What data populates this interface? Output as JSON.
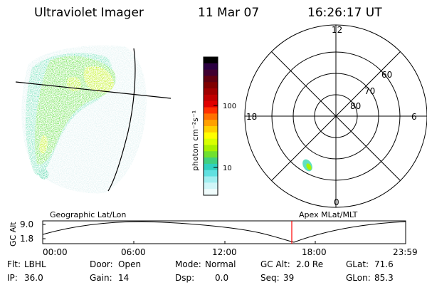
{
  "header": {
    "title": "Ultraviolet Imager",
    "date": "11 Mar 07",
    "time": "16:26:17 UT"
  },
  "colorbar": {
    "unit_label": "photon cm⁻²s⁻¹",
    "tick_labels": [
      "100",
      "10"
    ],
    "colors": [
      "#000000",
      "#2a0040",
      "#400030",
      "#600010",
      "#800000",
      "#a00000",
      "#c00000",
      "#e00000",
      "#ff3000",
      "#ff7000",
      "#ffa000",
      "#ffd000",
      "#ffff00",
      "#d8ff00",
      "#a8f000",
      "#70e030",
      "#40d080",
      "#30d0c0",
      "#60e0e0",
      "#a0eef0",
      "#d0f6f8",
      "#f0fcfc"
    ]
  },
  "polar_plot": {
    "mlt_labels": {
      "top": "12",
      "left": "18",
      "right": "6",
      "bottom": "0"
    },
    "lat_labels": [
      "60",
      "70",
      "80"
    ]
  },
  "timeline": {
    "y_axis_title": "GC Alt",
    "y_ticks": [
      "9.0",
      "1.8"
    ],
    "left_label": "Geographic Lat/Lon",
    "right_label": "Apex MLat/MLT",
    "x_ticks": [
      "00:00",
      "06:00",
      "12:00",
      "18:00",
      "23:59"
    ],
    "marker_time": "16:26",
    "marker_color": "#ff0000"
  },
  "status": {
    "flt_label": "Flt:",
    "flt_value": "LBHL",
    "door_label": "Door:",
    "door_value": "Open",
    "mode_label": "Mode:",
    "mode_value": "Normal",
    "gcalt_label": "GC Alt:",
    "gcalt_value": "2.0 Re",
    "glat_label": "GLat:",
    "glat_value": "71.6",
    "ip_label": "IP:",
    "ip_value": "36.0",
    "gain_label": "Gain:",
    "gain_value": "14",
    "dsp_label": "Dsp:",
    "dsp_value": "0.0",
    "seq_label": "Seq:",
    "seq_value": "39",
    "glon_label": "GLon:",
    "glon_value": "85.3"
  }
}
